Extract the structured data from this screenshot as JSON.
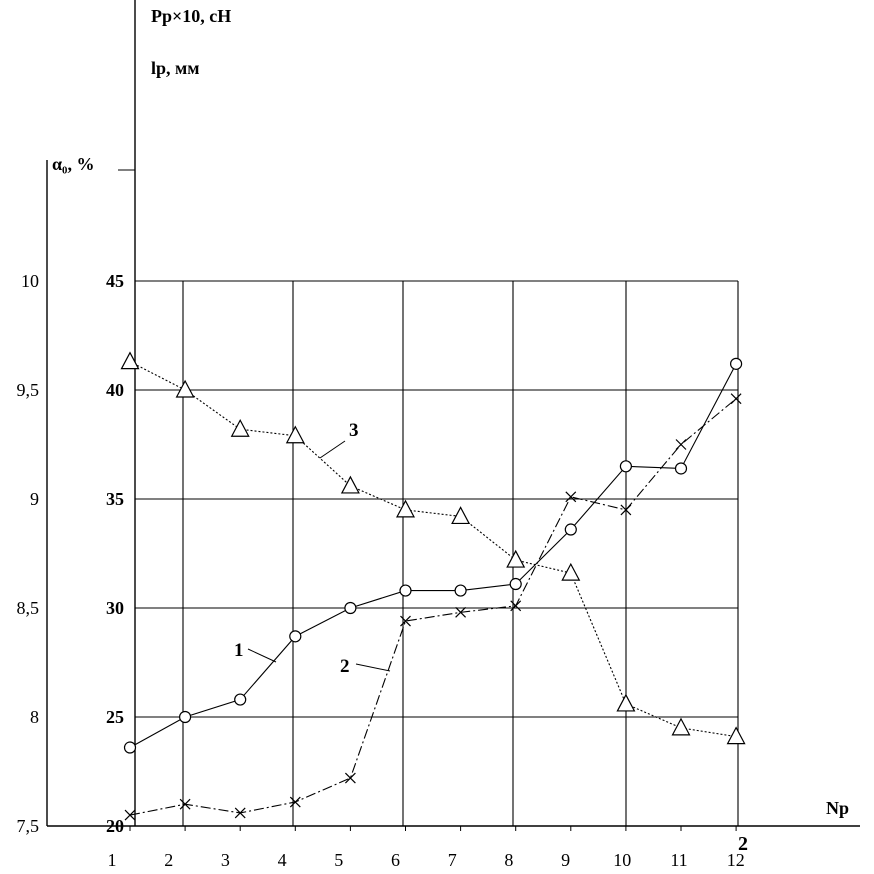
{
  "chart_data": {
    "type": "line",
    "x_label": "Nр",
    "x": [
      1,
      2,
      3,
      4,
      5,
      6,
      7,
      8,
      9,
      10,
      11,
      12
    ],
    "x_tick_labels": [
      "1",
      "2",
      "3",
      "4",
      "5",
      "6",
      "7",
      "8",
      "9",
      "10",
      "11",
      "12"
    ],
    "x_axis_end_label": "2",
    "left_axis": {
      "label": "α₀, %",
      "ylim": [
        7.5,
        10
      ],
      "ticks": [
        "7,5",
        "8",
        "8,5",
        "9",
        "9,5",
        "10"
      ]
    },
    "right_axis": {
      "label_lines": [
        "Рр×10, сН",
        "lр, мм"
      ],
      "ylim": [
        20,
        45
      ],
      "ticks": [
        "20",
        "25",
        "30",
        "35",
        "40",
        "45"
      ]
    },
    "grid": true,
    "series": [
      {
        "name": "1",
        "axis": "right",
        "marker": "circle",
        "line": "solid",
        "values": [
          23.6,
          25.0,
          25.8,
          28.7,
          30.0,
          30.8,
          30.8,
          31.1,
          33.6,
          36.5,
          36.4,
          41.2
        ]
      },
      {
        "name": "2",
        "axis": "right",
        "marker": "cross",
        "line": "dash-dot",
        "values": [
          20.5,
          21.0,
          20.6,
          21.1,
          22.2,
          29.4,
          29.8,
          30.1,
          35.1,
          34.5,
          37.5,
          39.6
        ]
      },
      {
        "name": "3",
        "axis": "left",
        "marker": "triangle",
        "line": "dotted",
        "values": [
          9.63,
          9.5,
          9.32,
          9.29,
          9.06,
          8.95,
          8.92,
          8.72,
          8.66,
          8.06,
          7.95,
          7.91
        ]
      }
    ]
  }
}
